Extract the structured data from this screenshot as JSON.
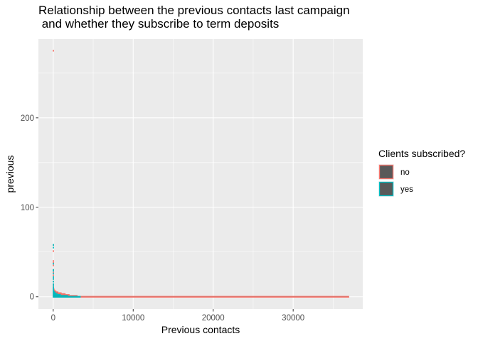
{
  "chart_data": {
    "type": "bar",
    "title": "Relationship between the previous contacts last campaign\n    and whether they subscribe to term deposits",
    "xlabel": "Previous contacts",
    "ylabel": "previous",
    "xlim": [
      -1850,
      38700
    ],
    "ylim": [
      -13.7,
      288
    ],
    "x_ticks": [
      0,
      10000,
      20000,
      30000
    ],
    "x_tick_labels": [
      "0",
      "10000",
      "20000",
      "30000"
    ],
    "y_ticks": [
      0,
      100,
      200
    ],
    "y_tick_labels": [
      "0",
      "100",
      "200"
    ],
    "grid": true,
    "legend": {
      "title": "Clients subscribed?",
      "position": "right",
      "entries": [
        {
          "label": "no",
          "color": "#F8766D"
        },
        {
          "label": "yes",
          "color": "#00BFC4"
        }
      ]
    },
    "series": [
      {
        "name": "no",
        "color": "#F8766D",
        "points": [
          [
            36954,
            0
          ],
          [
            3000,
            1
          ],
          [
            2000,
            2
          ],
          [
            1500,
            3
          ],
          [
            1000,
            4
          ],
          [
            600,
            5
          ],
          [
            350,
            6
          ],
          [
            200,
            7
          ],
          [
            120,
            8
          ],
          [
            80,
            9
          ],
          [
            50,
            10
          ],
          [
            30,
            12
          ],
          [
            20,
            14
          ],
          [
            12,
            17
          ],
          [
            8,
            20
          ],
          [
            5,
            24
          ],
          [
            3,
            27
          ],
          [
            2,
            30
          ],
          [
            1,
            35
          ],
          [
            1,
            38
          ],
          [
            1,
            40
          ],
          [
            1,
            51
          ],
          [
            1,
            58
          ],
          [
            1,
            275
          ]
        ]
      },
      {
        "name": "yes",
        "color": "#00BFC4",
        "points": [
          [
            3384,
            0
          ],
          [
            1800,
            1
          ],
          [
            900,
            2
          ],
          [
            500,
            3
          ],
          [
            300,
            4
          ],
          [
            180,
            5
          ],
          [
            100,
            6
          ],
          [
            60,
            7
          ],
          [
            40,
            8
          ],
          [
            25,
            9
          ],
          [
            15,
            10
          ],
          [
            10,
            12
          ],
          [
            6,
            14
          ],
          [
            4,
            17
          ],
          [
            3,
            20
          ],
          [
            2,
            22
          ],
          [
            2,
            26
          ],
          [
            1,
            29
          ],
          [
            1,
            30
          ],
          [
            1,
            37
          ],
          [
            1,
            55
          ],
          [
            1,
            58
          ]
        ]
      }
    ]
  }
}
